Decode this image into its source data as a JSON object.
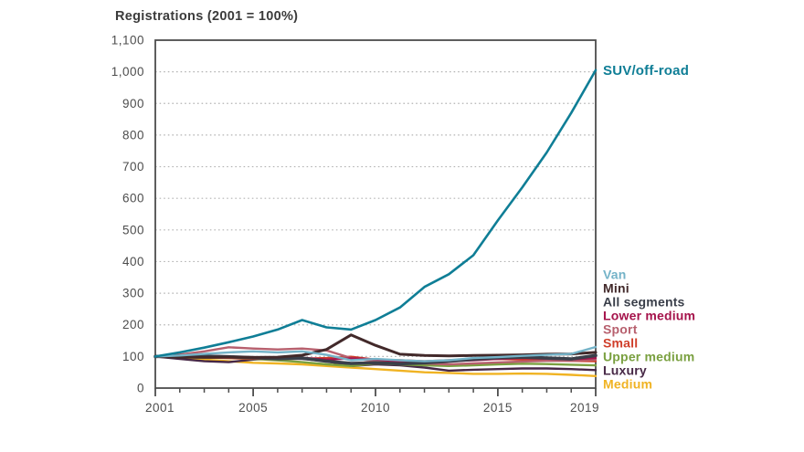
{
  "chart_data": {
    "type": "line",
    "title": "Registrations (2001 = 100%)",
    "x": [
      2001,
      2002,
      2003,
      2004,
      2005,
      2006,
      2007,
      2008,
      2009,
      2010,
      2011,
      2012,
      2013,
      2014,
      2015,
      2016,
      2017,
      2018,
      2019
    ],
    "x_tick_labels": [
      "2001",
      "2005",
      "2010",
      "2015",
      "2019"
    ],
    "x_major_ticks": [
      2001,
      2005,
      2010,
      2015,
      2019
    ],
    "ylim": [
      0,
      1100
    ],
    "y_tick_step": 100,
    "grid": "dotted horizontal lines at 100-1000",
    "legend_position": "right",
    "series": [
      {
        "name": "SUV/off-road",
        "color": "#0f7e96",
        "bold": false,
        "values": [
          100,
          113,
          128,
          145,
          163,
          185,
          215,
          192,
          185,
          215,
          255,
          320,
          360,
          420,
          530,
          635,
          745,
          870,
          1005
        ]
      },
      {
        "name": "Van",
        "color": "#74b3c8",
        "bold": false,
        "values": [
          100,
          103,
          108,
          113,
          116,
          113,
          116,
          105,
          88,
          92,
          88,
          85,
          88,
          95,
          98,
          102,
          105,
          108,
          130
        ]
      },
      {
        "name": "Mini",
        "color": "#42292a",
        "bold": false,
        "values": [
          100,
          98,
          97,
          98,
          97,
          98,
          104,
          122,
          168,
          135,
          107,
          103,
          102,
          103,
          104,
          105,
          107,
          108,
          113
        ]
      },
      {
        "name": "All segments",
        "color": "#3a3f4a",
        "bold": true,
        "values": [
          100,
          102,
          101,
          99,
          96,
          93,
          95,
          85,
          78,
          80,
          77,
          80,
          85,
          91,
          96,
          98,
          95,
          92,
          103
        ]
      },
      {
        "name": "Lower medium",
        "color": "#a5134b",
        "bold": false,
        "values": [
          100,
          101,
          103,
          100,
          97,
          94,
          96,
          90,
          94,
          91,
          84,
          82,
          85,
          88,
          92,
          95,
          93,
          91,
          95
        ]
      },
      {
        "name": "Sport",
        "color": "#b7606e",
        "bold": false,
        "values": [
          100,
          106,
          116,
          129,
          125,
          122,
          125,
          119,
          95,
          85,
          80,
          78,
          75,
          78,
          81,
          84,
          86,
          86,
          90
        ]
      },
      {
        "name": "Small",
        "color": "#d03f2b",
        "bold": false,
        "values": [
          100,
          99,
          97,
          95,
          93,
          92,
          93,
          95,
          99,
          90,
          88,
          85,
          88,
          90,
          92,
          90,
          88,
          86,
          85
        ]
      },
      {
        "name": "Upper medium",
        "color": "#7aa040",
        "bold": false,
        "values": [
          100,
          98,
          96,
          95,
          92,
          88,
          82,
          75,
          70,
          78,
          75,
          72,
          70,
          72,
          75,
          77,
          76,
          74,
          72
        ]
      },
      {
        "name": "Luxury",
        "color": "#472846",
        "bold": false,
        "values": [
          100,
          92,
          85,
          82,
          90,
          94,
          92,
          85,
          70,
          75,
          72,
          65,
          55,
          58,
          60,
          62,
          62,
          60,
          57
        ]
      },
      {
        "name": "Medium",
        "color": "#f0b323",
        "bold": false,
        "values": [
          100,
          95,
          90,
          85,
          80,
          78,
          75,
          70,
          65,
          60,
          55,
          50,
          48,
          45,
          45,
          46,
          45,
          42,
          38
        ]
      }
    ],
    "colors": {
      "axis": "#4d4d4d",
      "gridline": "#b4b4b4",
      "title_text": "#3b3b3b"
    }
  }
}
